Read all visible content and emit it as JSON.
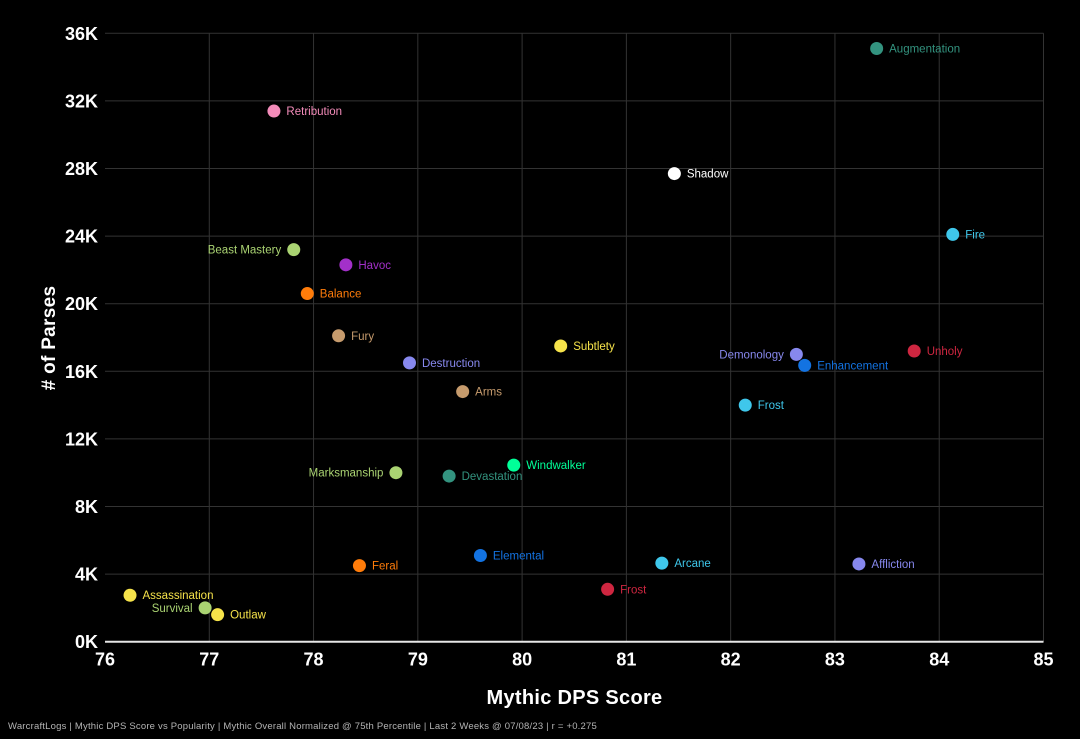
{
  "footer": "WarcraftLogs | Mythic DPS Score vs Popularity | Mythic Overall Normalized @ 75th Percentile | Last 2 Weeks @ 07/08/23 | r = +0.275",
  "chart_data": {
    "type": "scatter",
    "title": "",
    "xlabel": "Mythic DPS Score",
    "ylabel": "# of Parses",
    "xlim": [
      76,
      85
    ],
    "ylim": [
      0,
      36000
    ],
    "x_ticks": [
      76,
      77,
      78,
      79,
      80,
      81,
      82,
      83,
      84,
      85
    ],
    "y_ticks": [
      0,
      4000,
      8000,
      12000,
      16000,
      20000,
      24000,
      28000,
      32000,
      36000
    ],
    "y_tick_format": "K",
    "grid": true,
    "legend": "none",
    "colors": {
      "background": "#000000",
      "grid": "#333333",
      "axis_line": "#e6e6e6",
      "tick_text": "#ffffff",
      "footer_text": "#b5b5b5"
    },
    "points": [
      {
        "label": "Augmentation",
        "x": 83.4,
        "y": 35100,
        "color": "#33937F",
        "label_side": "right"
      },
      {
        "label": "Retribution",
        "x": 77.62,
        "y": 31400,
        "color": "#F48CBA",
        "label_side": "right"
      },
      {
        "label": "Shadow",
        "x": 81.46,
        "y": 27700,
        "color": "#FFFFFF",
        "label_side": "right"
      },
      {
        "label": "Fire",
        "x": 84.13,
        "y": 24100,
        "color": "#3FC7EB",
        "label_side": "right"
      },
      {
        "label": "Beast Mastery",
        "x": 77.81,
        "y": 23200,
        "color": "#AAD372",
        "label_side": "left"
      },
      {
        "label": "Havoc",
        "x": 78.31,
        "y": 22300,
        "color": "#A330C9",
        "label_side": "right"
      },
      {
        "label": "Balance",
        "x": 77.94,
        "y": 20600,
        "color": "#FF7C0A",
        "label_side": "right"
      },
      {
        "label": "Fury",
        "x": 78.24,
        "y": 18100,
        "color": "#C69B6D",
        "label_side": "right"
      },
      {
        "label": "Subtlety",
        "x": 80.37,
        "y": 17500,
        "color": "#F6E34A",
        "label_side": "right"
      },
      {
        "label": "Unholy",
        "x": 83.76,
        "y": 17200,
        "color": "#CE2640",
        "label_side": "right"
      },
      {
        "label": "Demonology",
        "x": 82.63,
        "y": 17000,
        "color": "#8788EE",
        "label_side": "left"
      },
      {
        "label": "Destruction",
        "x": 78.92,
        "y": 16500,
        "color": "#8788EE",
        "label_side": "right"
      },
      {
        "label": "Enhancement",
        "x": 82.71,
        "y": 16350,
        "color": "#1373E2",
        "label_side": "right"
      },
      {
        "label": "Arms",
        "x": 79.43,
        "y": 14800,
        "color": "#C69B6D",
        "label_side": "right"
      },
      {
        "label": "Frost",
        "x": 82.14,
        "y": 14000,
        "color": "#3FC7EB",
        "label_side": "right"
      },
      {
        "label": "Windwalker",
        "x": 79.92,
        "y": 10450,
        "color": "#00FF98",
        "label_side": "right"
      },
      {
        "label": "Marksmanship",
        "x": 78.79,
        "y": 10000,
        "color": "#AAD372",
        "label_side": "left"
      },
      {
        "label": "Devastation",
        "x": 79.3,
        "y": 9800,
        "color": "#33937F",
        "label_side": "right"
      },
      {
        "label": "Elemental",
        "x": 79.6,
        "y": 5100,
        "color": "#1373E2",
        "label_side": "right"
      },
      {
        "label": "Arcane",
        "x": 81.34,
        "y": 4650,
        "color": "#3FC7EB",
        "label_side": "right"
      },
      {
        "label": "Affliction",
        "x": 83.23,
        "y": 4600,
        "color": "#8788EE",
        "label_side": "right"
      },
      {
        "label": "Feral",
        "x": 78.44,
        "y": 4500,
        "color": "#FF7C0A",
        "label_side": "right"
      },
      {
        "label": "Frost",
        "x": 80.82,
        "y": 3100,
        "color": "#CE2640",
        "label_side": "right"
      },
      {
        "label": "Assassination",
        "x": 76.24,
        "y": 2750,
        "color": "#F6E34A",
        "label_side": "right"
      },
      {
        "label": "Survival",
        "x": 76.96,
        "y": 2000,
        "color": "#AAD372",
        "label_side": "left"
      },
      {
        "label": "Outlaw",
        "x": 77.08,
        "y": 1600,
        "color": "#F6E34A",
        "label_side": "right"
      }
    ]
  }
}
